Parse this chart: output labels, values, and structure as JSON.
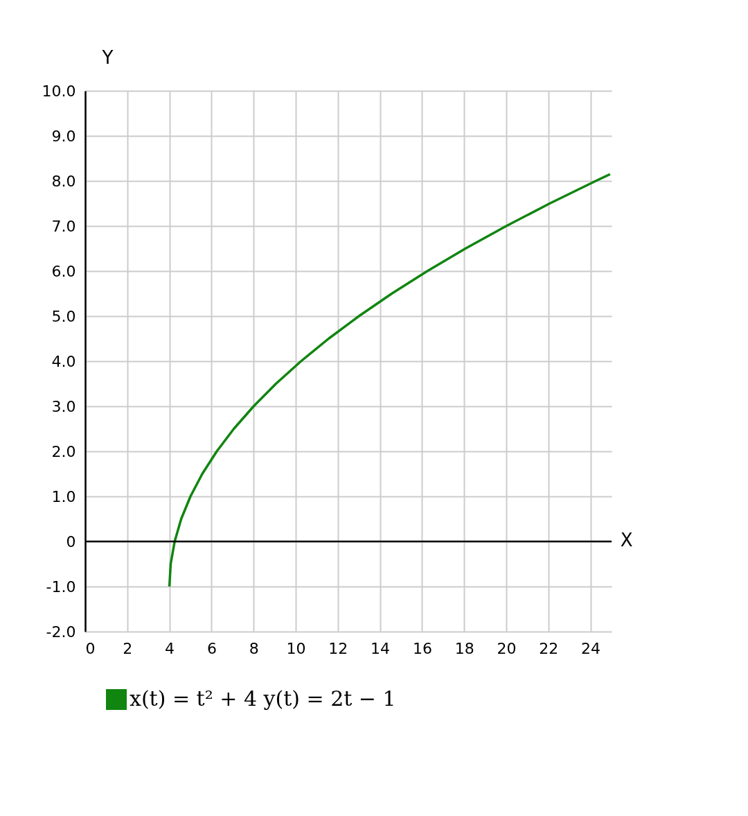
{
  "chart_data": {
    "type": "line",
    "xlabel": "X",
    "ylabel": "Y",
    "x": [
      4,
      4.06,
      4.25,
      4.56,
      5,
      5.56,
      6.25,
      7.06,
      8,
      9.06,
      10.25,
      11.56,
      13,
      14.56,
      16.25,
      18.06,
      20,
      22.06,
      24.25,
      24.93
    ],
    "series": [
      {
        "name": "x(t) = t² + 4   y(t) = 2t − 1",
        "color": "#108510",
        "values": [
          -1,
          -0.5,
          0,
          0.5,
          1,
          1.5,
          2,
          2.5,
          3,
          3.5,
          4,
          4.5,
          5,
          5.5,
          6,
          6.5,
          7,
          7.5,
          8,
          8.15
        ]
      }
    ],
    "xlim": [
      0,
      25
    ],
    "xticks": [
      0,
      2,
      4,
      6,
      8,
      10,
      12,
      14,
      16,
      18,
      20,
      22,
      24
    ],
    "ylim": [
      -2,
      10
    ],
    "yticks": [
      {
        "value": -2,
        "label": "-2.0"
      },
      {
        "value": -1,
        "label": "-1.0"
      },
      0,
      {
        "value": 1,
        "label": "1.0"
      },
      {
        "value": 2,
        "label": "2.0"
      },
      {
        "value": 3,
        "label": "3.0"
      },
      {
        "value": 4,
        "label": "4.0"
      },
      {
        "value": 5,
        "label": "5.0"
      },
      {
        "value": 6,
        "label": "6.0"
      },
      {
        "value": 7,
        "label": "7.0"
      },
      {
        "value": 8,
        "label": "8.0"
      },
      {
        "value": 9,
        "label": "9.0"
      },
      {
        "value": 10,
        "label": "10.0"
      }
    ],
    "ref_lines": [
      {
        "axis": "y",
        "value": 0,
        "color": "#000000"
      }
    ],
    "grid": true,
    "legend": "bottom",
    "marker": "none",
    "line_style": "solid"
  }
}
